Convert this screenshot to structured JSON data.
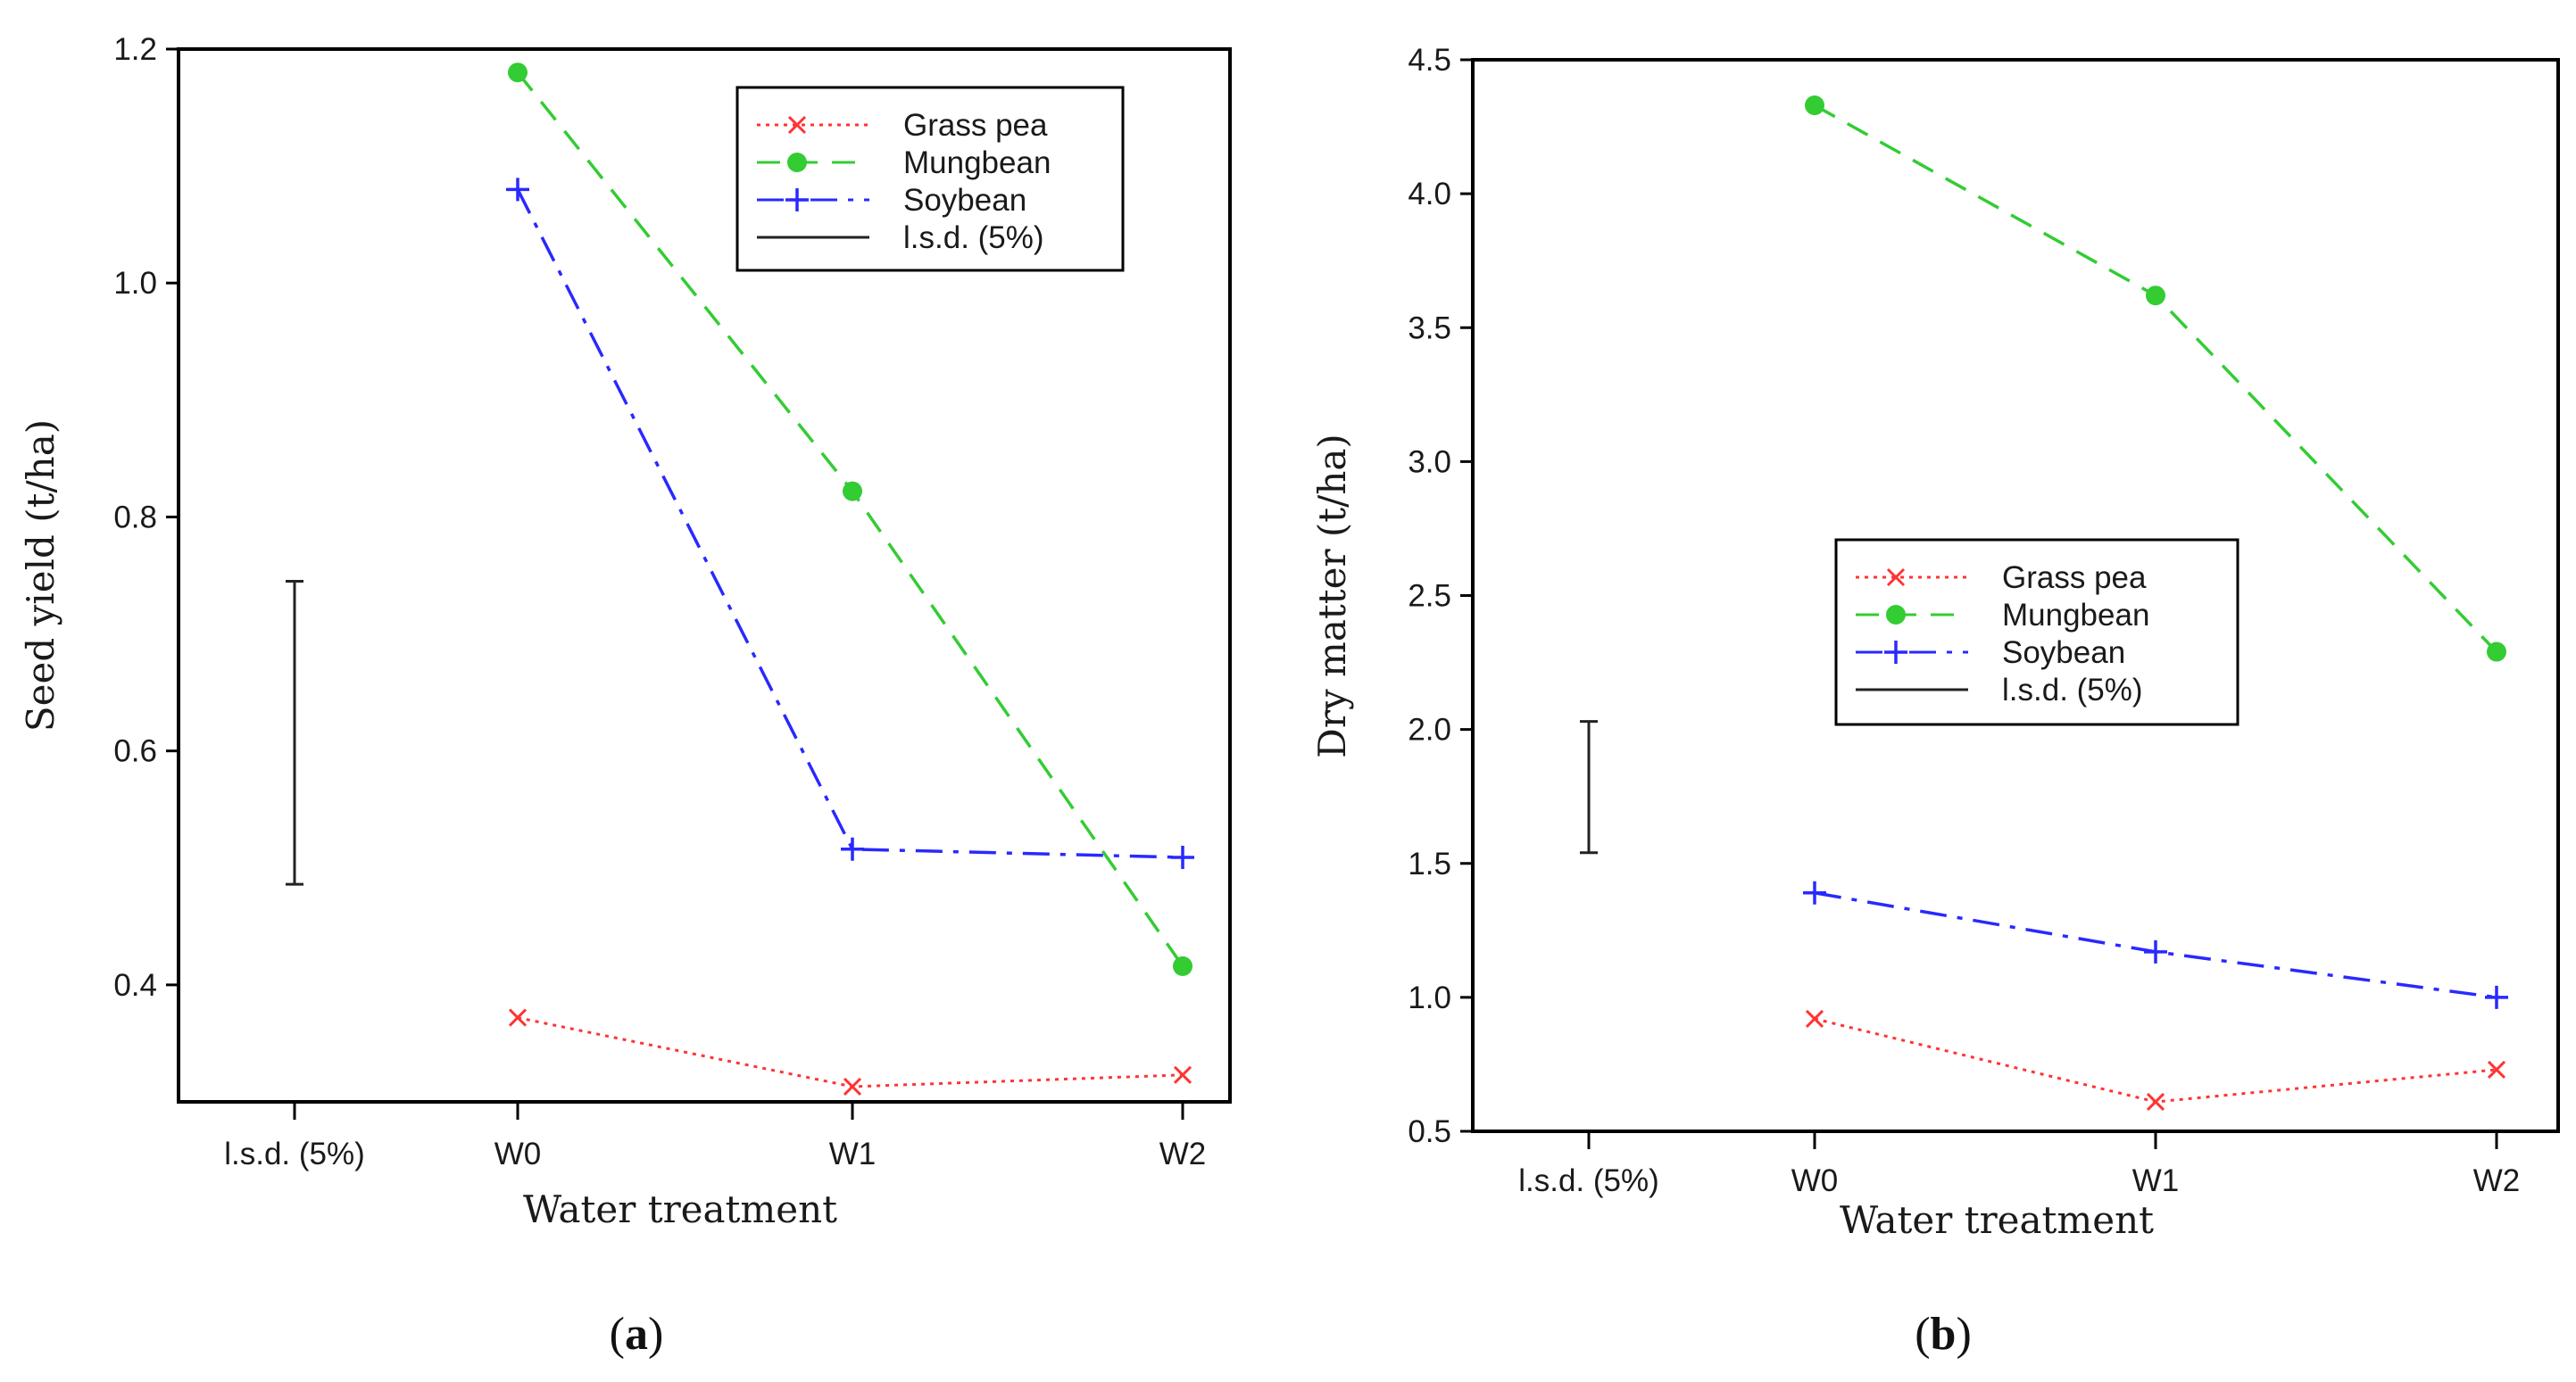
{
  "colors": {
    "grass_pea": "#ff3333",
    "mungbean": "#33cc33",
    "soybean": "#2929ff",
    "lsd": "#222222",
    "axis": "#000000"
  },
  "chart_data": [
    {
      "type": "line",
      "panel": "a",
      "caption": {
        "open": "(",
        "letter": "a",
        "close": ")"
      },
      "title": "",
      "categories": [
        "l.s.d. (5%)",
        "W0",
        "W1",
        "W2"
      ],
      "xlabel": "Water treatment",
      "ylabel": "Seed yield (t/ha)",
      "ylim": [
        0.3,
        1.2
      ],
      "yticks": [
        0.4,
        0.6,
        0.8,
        1.0,
        1.2
      ],
      "ytick_labels": [
        "0.4",
        "0.6",
        "0.8",
        "1.0",
        "1.2"
      ],
      "grid": false,
      "legend_position": "top-right",
      "series": [
        {
          "name": "Grass pea",
          "key": "grass_pea",
          "marker": "x",
          "dash": "dotted",
          "x": [
            "W0",
            "W1",
            "W2"
          ],
          "values": [
            0.372,
            0.313,
            0.323
          ]
        },
        {
          "name": "Mungbean",
          "key": "mungbean",
          "marker": "circle",
          "dash": "dashed",
          "x": [
            "W0",
            "W1",
            "W2"
          ],
          "values": [
            1.18,
            0.822,
            0.416
          ]
        },
        {
          "name": "Soybean",
          "key": "soybean",
          "marker": "plus",
          "dash": "dashdot",
          "x": [
            "W0",
            "W1",
            "W2"
          ],
          "values": [
            1.08,
            0.516,
            0.509
          ]
        }
      ],
      "lsd": {
        "name": "l.s.d. (5%)",
        "low": 0.486,
        "high": 0.745
      }
    },
    {
      "type": "line",
      "panel": "b",
      "caption": {
        "open": "(",
        "letter": "b",
        "close": ")"
      },
      "title": "",
      "categories": [
        "l.s.d. (5%)",
        "W0",
        "W1",
        "W2"
      ],
      "xlabel": "Water treatment",
      "ylabel": "Dry matter (t/ha)",
      "ylim": [
        0.5,
        4.5
      ],
      "yticks": [
        0.5,
        1.0,
        1.5,
        2.0,
        2.5,
        3.0,
        3.5,
        4.0,
        4.5
      ],
      "ytick_labels": [
        "0.5",
        "1.0",
        "1.5",
        "2.0",
        "2.5",
        "3.0",
        "3.5",
        "4.0",
        "4.5"
      ],
      "grid": false,
      "legend_position": "center-right",
      "series": [
        {
          "name": "Grass pea",
          "key": "grass_pea",
          "marker": "x",
          "dash": "dotted",
          "x": [
            "W0",
            "W1",
            "W2"
          ],
          "values": [
            0.92,
            0.61,
            0.73
          ]
        },
        {
          "name": "Mungbean",
          "key": "mungbean",
          "marker": "circle",
          "dash": "dashed",
          "x": [
            "W0",
            "W1",
            "W2"
          ],
          "values": [
            4.33,
            3.62,
            2.29
          ]
        },
        {
          "name": "Soybean",
          "key": "soybean",
          "marker": "plus",
          "dash": "dashdot",
          "x": [
            "W0",
            "W1",
            "W2"
          ],
          "values": [
            1.39,
            1.17,
            1.0
          ]
        }
      ],
      "lsd": {
        "name": "l.s.d. (5%)",
        "low": 1.54,
        "high": 2.03
      }
    }
  ]
}
